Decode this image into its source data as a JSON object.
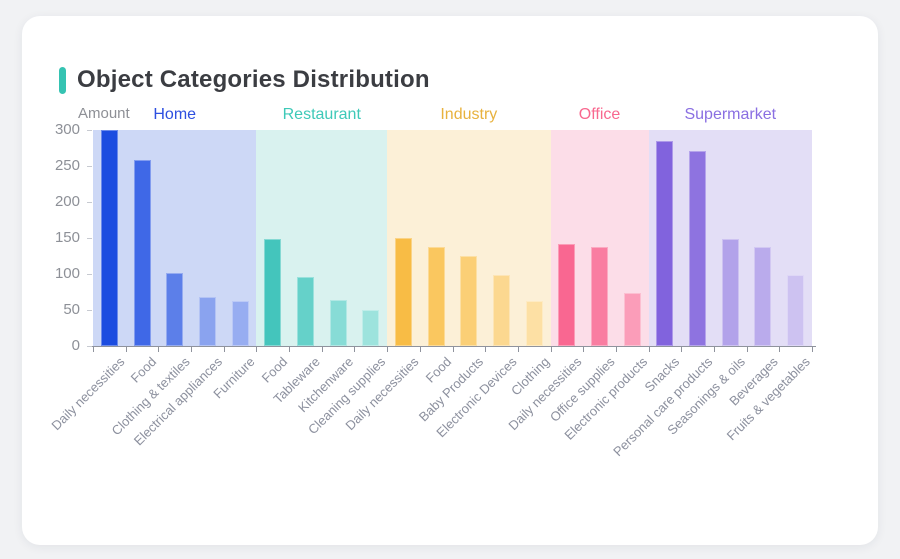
{
  "card": {
    "title": "Object Categories Distribution",
    "accent_color": "#35c3b2"
  },
  "chart_data": {
    "type": "bar",
    "title": "Object Categories Distribution",
    "xlabel": "",
    "ylabel": "Amount",
    "ylim": [
      0,
      300
    ],
    "yticks": [
      0,
      50,
      100,
      150,
      200,
      250,
      300
    ],
    "grid": false,
    "legend_position": "none",
    "groups": [
      {
        "name": "Home",
        "label_color": "#2d4fe0",
        "band_color": "#cdd8f6",
        "items": [
          {
            "label": "Daily necessities",
            "value": 300,
            "color": "#1b4ce0"
          },
          {
            "label": "Food",
            "value": 258,
            "color": "#3f68e7"
          },
          {
            "label": "Clothing & textiles",
            "value": 102,
            "color": "#5c7fe9"
          },
          {
            "label": "Electrical appliances",
            "value": 68,
            "color": "#8aa3ef"
          },
          {
            "label": "Furniture",
            "value": 63,
            "color": "#97adf1"
          }
        ]
      },
      {
        "name": "Restaurant",
        "label_color": "#3ec9b8",
        "band_color": "#d9f2ef",
        "items": [
          {
            "label": "Food",
            "value": 148,
            "color": "#44c5bc"
          },
          {
            "label": "Tableware",
            "value": 96,
            "color": "#65d1c9"
          },
          {
            "label": "Kitchenware",
            "value": 64,
            "color": "#87dcd6"
          },
          {
            "label": "Cleaning supplies",
            "value": 50,
            "color": "#9de3dd"
          }
        ]
      },
      {
        "name": "Industry",
        "label_color": "#e8b23e",
        "band_color": "#fcf0d7",
        "items": [
          {
            "label": "Daily necessities",
            "value": 150,
            "color": "#f8bc45"
          },
          {
            "label": "Food",
            "value": 138,
            "color": "#fac75f"
          },
          {
            "label": "Baby Products",
            "value": 125,
            "color": "#fbcf76"
          },
          {
            "label": "Electronic Devices",
            "value": 98,
            "color": "#fcd890"
          },
          {
            "label": "Clothing",
            "value": 62,
            "color": "#fde0a4"
          }
        ]
      },
      {
        "name": "Office",
        "label_color": "#f8688f",
        "band_color": "#fcdde8",
        "items": [
          {
            "label": "Daily necessities",
            "value": 142,
            "color": "#f96791"
          },
          {
            "label": "Office supplies",
            "value": 138,
            "color": "#f97da1"
          },
          {
            "label": "Electronic products",
            "value": 74,
            "color": "#fb9db9"
          }
        ]
      },
      {
        "name": "Supermarket",
        "label_color": "#8a6fe2",
        "band_color": "#e3def6",
        "items": [
          {
            "label": "Snacks",
            "value": 285,
            "color": "#8163dd"
          },
          {
            "label": "Personal care products",
            "value": 271,
            "color": "#8e73e0"
          },
          {
            "label": "Seasonings & oils",
            "value": 148,
            "color": "#b2a2ea"
          },
          {
            "label": "Beverages",
            "value": 138,
            "color": "#baabec"
          },
          {
            "label": "Fruits & vegetables",
            "value": 99,
            "color": "#cdc2f1"
          }
        ]
      }
    ]
  }
}
